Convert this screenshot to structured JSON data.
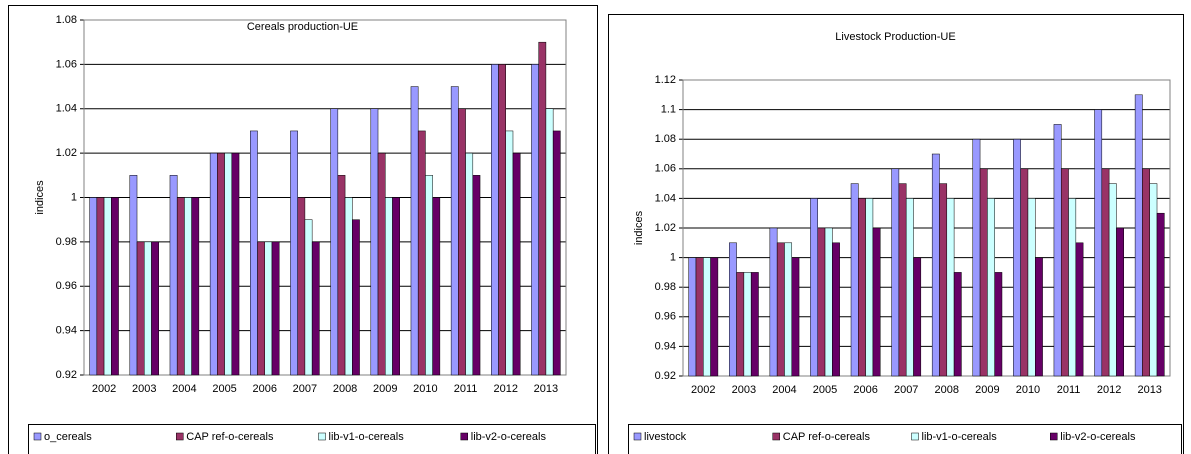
{
  "chart_data": [
    {
      "type": "bar",
      "title": "Cereals production-UE",
      "y_label": "indices",
      "categories": [
        "2002",
        "2003",
        "2004",
        "2005",
        "2006",
        "2007",
        "2008",
        "2009",
        "2010",
        "2011",
        "2012",
        "2013"
      ],
      "series": [
        {
          "name": "o_cereals",
          "color": "#9999ff",
          "values": [
            1.0,
            1.01,
            1.01,
            1.02,
            1.03,
            1.03,
            1.04,
            1.04,
            1.05,
            1.05,
            1.06,
            1.06
          ]
        },
        {
          "name": "CAP ref-o-cereals",
          "color": "#993366",
          "values": [
            1.0,
            0.98,
            1.0,
            1.02,
            0.98,
            1.0,
            1.01,
            1.02,
            1.03,
            1.04,
            1.06,
            1.07
          ]
        },
        {
          "name": "lib-v1-o-cereals",
          "color": "#ccffff",
          "values": [
            1.0,
            0.98,
            1.0,
            1.02,
            0.98,
            0.99,
            1.0,
            1.0,
            1.01,
            1.02,
            1.03,
            1.04
          ]
        },
        {
          "name": "lib-v2-o-cereals",
          "color": "#660066",
          "values": [
            1.0,
            0.98,
            1.0,
            1.02,
            0.98,
            0.98,
            0.99,
            1.0,
            1.0,
            1.01,
            1.02,
            1.03
          ]
        }
      ],
      "ylim": [
        0.92,
        1.08
      ],
      "yticks": [
        0.92,
        0.94,
        0.96,
        0.98,
        1,
        1.02,
        1.04,
        1.06,
        1.08
      ],
      "grid": true,
      "legend": "bottom"
    },
    {
      "type": "bar",
      "title": "Livestock Production-UE",
      "y_label": "indices",
      "categories": [
        "2002",
        "2003",
        "2004",
        "2005",
        "2006",
        "2007",
        "2008",
        "2009",
        "2010",
        "2011",
        "2012",
        "2013"
      ],
      "series": [
        {
          "name": "livestock",
          "color": "#9999ff",
          "values": [
            1.0,
            1.01,
            1.02,
            1.04,
            1.05,
            1.06,
            1.07,
            1.08,
            1.08,
            1.09,
            1.1,
            1.11
          ]
        },
        {
          "name": "CAP ref-o-cereals",
          "color": "#993366",
          "values": [
            1.0,
            0.99,
            1.01,
            1.02,
            1.04,
            1.05,
            1.05,
            1.06,
            1.06,
            1.06,
            1.06,
            1.06
          ]
        },
        {
          "name": "lib-v1-o-cereals",
          "color": "#ccffff",
          "values": [
            1.0,
            0.99,
            1.01,
            1.02,
            1.04,
            1.04,
            1.04,
            1.04,
            1.04,
            1.04,
            1.05,
            1.05
          ]
        },
        {
          "name": "lib-v2-o-cereals",
          "color": "#660066",
          "values": [
            1.0,
            0.99,
            1.0,
            1.01,
            1.02,
            1.0,
            0.99,
            0.99,
            1.0,
            1.01,
            1.02,
            1.03
          ]
        }
      ],
      "ylim": [
        0.92,
        1.12
      ],
      "yticks": [
        0.92,
        0.94,
        0.96,
        0.98,
        1,
        1.02,
        1.04,
        1.06,
        1.08,
        1.1,
        1.12
      ],
      "grid": true,
      "legend": "bottom"
    }
  ]
}
